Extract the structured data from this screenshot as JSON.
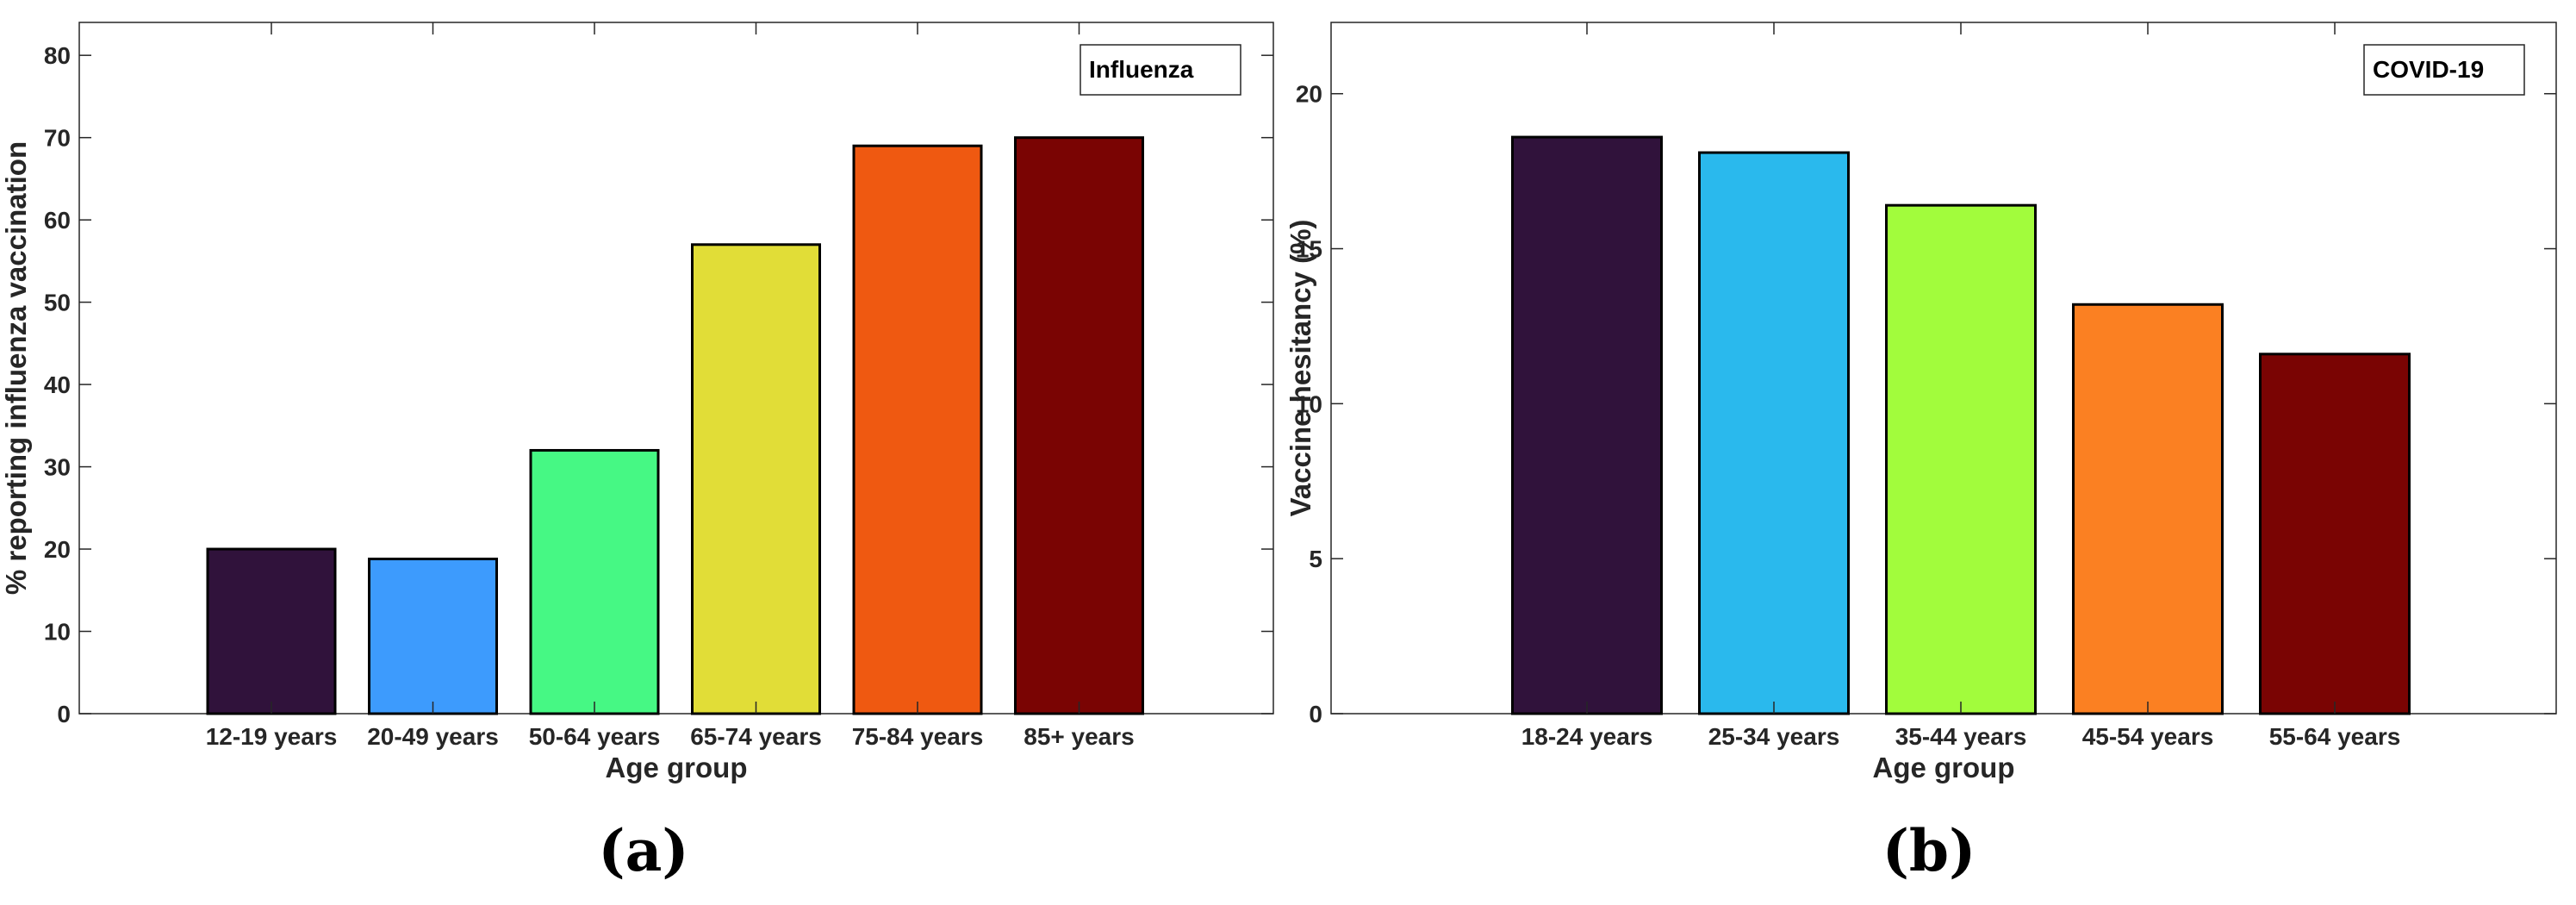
{
  "chart_data": [
    {
      "type": "bar",
      "legend": "Influenza",
      "legend_position": "top-right",
      "panel_label": "(a)",
      "xlabel": "Age group",
      "ylabel": "% reporting influenza vaccination",
      "ylim": [
        0,
        84
      ],
      "yticks": [
        0,
        10,
        20,
        30,
        40,
        50,
        60,
        70,
        80
      ],
      "categories": [
        "12-19 years",
        "20-49 years",
        "50-64 years",
        "65-74 years",
        "75-84 years",
        "85+ years"
      ],
      "values": [
        20,
        18.8,
        32,
        57,
        69,
        70
      ],
      "colors": [
        "#30123b",
        "#3d9bfd",
        "#46f884",
        "#e1dd37",
        "#ef5911",
        "#7a0403"
      ]
    },
    {
      "type": "bar",
      "legend": "COVID-19",
      "legend_position": "top-right",
      "panel_label": "(b)",
      "xlabel": "Age group",
      "ylabel": "Vaccine hesitancy (%)",
      "ylim": [
        0,
        22.3
      ],
      "yticks": [
        0,
        5,
        10,
        15,
        20
      ],
      "categories": [
        "18-24 years",
        "25-34 years",
        "35-44 years",
        "45-54 years",
        "55-64 years"
      ],
      "values": [
        18.6,
        18.1,
        16.4,
        13.2,
        11.6
      ],
      "colors": [
        "#30123b",
        "#2ab9ed",
        "#a2fc3c",
        "#fb8022",
        "#7a0403"
      ]
    }
  ]
}
